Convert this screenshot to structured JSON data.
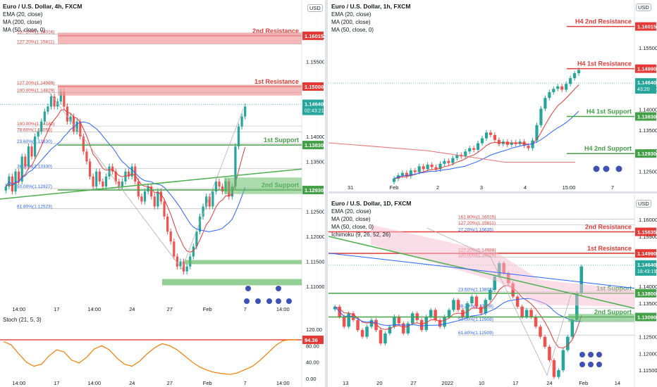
{
  "colors": {
    "up": "#26a69a",
    "down": "#ef5350",
    "ema": "#e53935",
    "ma200": "#e57373",
    "ma50": "#2962ff",
    "res": "#e53935",
    "sup": "#43a047",
    "trend": "#4caf50",
    "fib": "#b0b0b0",
    "price": "#26a69a",
    "stoch": "#f57c00",
    "ichimoku": "#f8bbd0"
  },
  "panels": {
    "h4": {
      "title": "Euro / U.S. Dollar, 4h, FXCM",
      "ind1": "EMA (20, close)",
      "ind2": "MA (200, close)",
      "ind3": "MA (50, close, 0)",
      "currency": "USD",
      "price_label": "1.14640",
      "countdown": "02:43:21",
      "axis_ticks": [
        "1.16000",
        "1.15500",
        "1.14000",
        "1.13500",
        "1.12500",
        "1.12000",
        "1.11500",
        "1.11000"
      ],
      "axis_tick_values": [
        1.16,
        1.155,
        1.14,
        1.135,
        1.125,
        1.12,
        1.115,
        1.11
      ],
      "levels": [
        {
          "name": "2nd Resistance",
          "value": 1.16015,
          "label": "1.16015",
          "kind": "res"
        },
        {
          "name": "1st Resistance",
          "value": 1.15,
          "label": "1.15000",
          "kind": "res"
        },
        {
          "name": "1st Support",
          "value": 1.1383,
          "label": "1.13830",
          "kind": "sup"
        },
        {
          "name": "2nd Support",
          "value": 1.1293,
          "label": "1.12930",
          "kind": "sup"
        }
      ],
      "fib_labels": [
        {
          "text": "127.20%(1.16016)",
          "value": 1.1605
        },
        {
          "text": "127.20%(1.15811)",
          "value": 1.1585
        },
        {
          "text": "127.20%(1.14989)",
          "value": 1.1503
        },
        {
          "text": "100.00%(1.14829)",
          "value": 1.1488
        },
        {
          "text": "100.00%(1.14182)",
          "value": 1.1421
        },
        {
          "text": "78.60%(1.14055)",
          "value": 1.1409
        },
        {
          "text": "23.60%(1.13830)",
          "value": 1.1386
        },
        {
          "text": "38.20%(1.13330)",
          "value": 1.1336
        },
        {
          "text": "50.00%(1.12927)",
          "value": 1.1296
        },
        {
          "text": "61.80%(1.12523)",
          "value": 1.1256
        }
      ],
      "x_ticks": [
        "14:00",
        "17",
        "14:00",
        "24",
        "27",
        "Feb",
        "7",
        "14:00"
      ],
      "candles": [
        1.13,
        1.132,
        1.129,
        1.133,
        1.131,
        1.136,
        1.134,
        1.138,
        1.136,
        1.14,
        1.141,
        1.143,
        1.145,
        1.146,
        1.148,
        1.146,
        1.147,
        1.149,
        1.146,
        1.143,
        1.144,
        1.141,
        1.143,
        1.14,
        1.137,
        1.135,
        1.132,
        1.13,
        1.133,
        1.131,
        1.13,
        1.132,
        1.134,
        1.133,
        1.131,
        1.13,
        1.131,
        1.133,
        1.132,
        1.134,
        1.131,
        1.128,
        1.127,
        1.129,
        1.13,
        1.128,
        1.126,
        1.129,
        1.127,
        1.124,
        1.121,
        1.119,
        1.116,
        1.114,
        1.115,
        1.113,
        1.114,
        1.116,
        1.118,
        1.121,
        1.124,
        1.126,
        1.128,
        1.126,
        1.129,
        1.131,
        1.13,
        1.129,
        1.131,
        1.128,
        1.13,
        1.138,
        1.142,
        1.144,
        1.146
      ]
    },
    "stoch": {
      "title": "Stoch (21, 5, 3)",
      "value_label": "94.36",
      "axis_ticks": [
        "120.00",
        "80.00",
        "40.00",
        "0.00"
      ],
      "axis_tick_values": [
        120,
        80,
        40,
        0
      ],
      "values": [
        90,
        82,
        60,
        40,
        30,
        35,
        55,
        70,
        65,
        45,
        38,
        52,
        72,
        80,
        70,
        50,
        35,
        30,
        42,
        60,
        75,
        85,
        80,
        70,
        55,
        40,
        28,
        20,
        15,
        12,
        10,
        14,
        22,
        30,
        45,
        62,
        80,
        92,
        95,
        94
      ]
    },
    "h1": {
      "title": "Euro / U.S. Dollar, 1h, FXCM",
      "ind1": "EMA (20, close)",
      "ind2": "MA (200, close)",
      "ind3": "MA (50, close, 0)",
      "currency": "USD",
      "price_label": "1.14640",
      "countdown": "43:20",
      "axis_ticks": [
        "1.15500",
        "1.14500",
        "1.14000",
        "1.13500",
        "1.13000",
        "1.12500"
      ],
      "axis_tick_values": [
        1.155,
        1.145,
        1.14,
        1.135,
        1.13,
        1.125
      ],
      "levels": [
        {
          "name": "H4 2nd Resistance",
          "value": 1.16015,
          "label": "1.16015",
          "kind": "res"
        },
        {
          "name": "H4 1st Resistance",
          "value": 1.1499,
          "label": "1.14990",
          "kind": "res"
        },
        {
          "name": "H4 1st Support",
          "value": 1.1383,
          "label": "1.13830",
          "kind": "sup"
        },
        {
          "name": "H4 2nd Support",
          "value": 1.1293,
          "label": "1.12930",
          "kind": "sup"
        }
      ],
      "x_ticks": [
        "31",
        "Feb",
        "2",
        "3",
        "4",
        "15:00",
        "7"
      ],
      "candles": [
        1.1232,
        1.124,
        1.1246,
        1.1238,
        1.1252,
        1.1248,
        1.1262,
        1.1255,
        1.1266,
        1.126,
        1.1255,
        1.1268,
        1.1275,
        1.127,
        1.1282,
        1.129,
        1.1286,
        1.1298,
        1.1306,
        1.1302,
        1.1318,
        1.133,
        1.1344,
        1.1338,
        1.1326,
        1.1316,
        1.1322,
        1.1314,
        1.132,
        1.1316,
        1.1322,
        1.1312,
        1.1306,
        1.1325,
        1.1362,
        1.1402,
        1.1428,
        1.1442,
        1.145,
        1.1456,
        1.1448,
        1.1462,
        1.1476,
        1.1488,
        1.1496
      ]
    },
    "d1": {
      "title": "Euro / U.S. Dollar, 1D, FXCM",
      "ind1": "EMA (20, close)",
      "ind2": "MA (200, close)",
      "ind3": "MA (50, close, 0)",
      "ind4": "Ichimoku (9, 26, 52, 26)",
      "currency": "USD",
      "price_label": "1.14640",
      "countdown": "18:43:19",
      "axis_ticks": [
        "1.16000",
        "1.15500",
        "1.14500",
        "1.14000",
        "1.13500",
        "1.12500",
        "1.12000",
        "1.11500"
      ],
      "axis_tick_values": [
        1.16,
        1.155,
        1.145,
        1.14,
        1.135,
        1.125,
        1.12,
        1.115
      ],
      "levels": [
        {
          "name": "2nd Resistance",
          "value": 1.15635,
          "label": "1.15635",
          "kind": "res"
        },
        {
          "name": "1st Resistance",
          "value": 1.1499,
          "label": "1.14990",
          "kind": "res"
        },
        {
          "name": "1st Support",
          "value": 1.138,
          "label": "1.13800",
          "kind": "sup"
        },
        {
          "name": "2nd Support",
          "value": 1.1309,
          "label": "1.13090",
          "kind": "sup"
        }
      ],
      "fib_labels": [
        {
          "text": "161.80%(1.16015)",
          "value": 1.1601
        },
        {
          "text": "127.20%(1.15811)",
          "value": 1.1584
        },
        {
          "text": "27.20%(1.15635)",
          "value": 1.1563
        },
        {
          "text": "127.20%(1.14988)",
          "value": 1.1502
        },
        {
          "text": "100.00%(1.14829)",
          "value": 1.1488
        },
        {
          "text": "23.60%(1.13803)",
          "value": 1.1385
        },
        {
          "text": "38.20%(1.13308)",
          "value": 1.1335
        },
        {
          "text": "50.00%(1.12908)",
          "value": 1.1295
        },
        {
          "text": "61.80%(1.12509)",
          "value": 1.1255
        }
      ],
      "x_ticks": [
        "13",
        "20",
        "27",
        "2022",
        "10",
        "17",
        "24",
        "Feb",
        "14"
      ],
      "candles": [
        1.134,
        1.131,
        1.128,
        1.132,
        1.13,
        1.127,
        1.125,
        1.128,
        1.13,
        1.127,
        1.123,
        1.126,
        1.128,
        1.131,
        1.129,
        1.126,
        1.129,
        1.132,
        1.13,
        1.127,
        1.131,
        1.133,
        1.13,
        1.128,
        1.131,
        1.133,
        1.136,
        1.133,
        1.131,
        1.135,
        1.137,
        1.134,
        1.132,
        1.136,
        1.139,
        1.143,
        1.147,
        1.144,
        1.141,
        1.137,
        1.134,
        1.131,
        1.133,
        1.131,
        1.128,
        1.125,
        1.122,
        1.118,
        1.113,
        1.115,
        1.121,
        1.125,
        1.13,
        1.138,
        1.146
      ]
    }
  }
}
